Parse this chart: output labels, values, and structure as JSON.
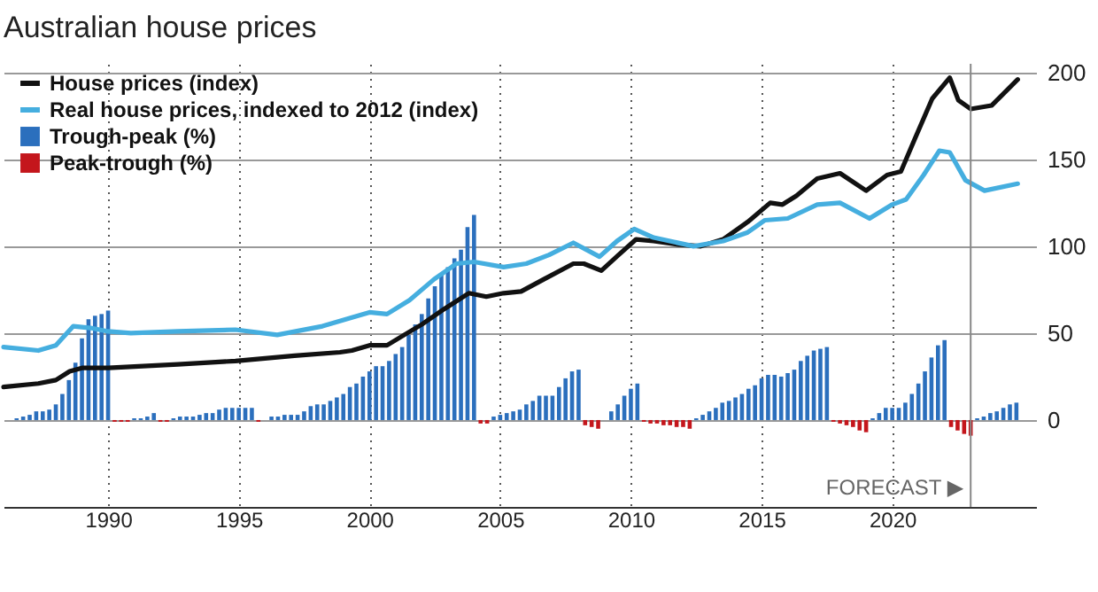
{
  "chart_data": {
    "type": "line",
    "title": "Australian house prices",
    "xlim": [
      1986,
      2025.5
    ],
    "xticks": [
      1990,
      1995,
      2000,
      2005,
      2010,
      2015,
      2020
    ],
    "ylim": [
      -50,
      205
    ],
    "yticks": [
      0,
      50,
      100,
      150,
      200
    ],
    "grid": true,
    "legend": "top left",
    "series": [
      {
        "name": "House prices (index)",
        "color": "#111111",
        "x": [
          1986,
          1987.33,
          1988,
          1988.53,
          1989,
          1990,
          1992.67,
          1994.87,
          1997.13,
          1998.87,
          1999.33,
          2000,
          2000.67,
          2001.33,
          2002,
          2002.87,
          2003.8,
          2004.47,
          2005.13,
          2005.8,
          2006.67,
          2007.8,
          2008.2,
          2008.87,
          2009.53,
          2010.2,
          2010.87,
          2011.8,
          2012.67,
          2013.53,
          2014.47,
          2015.33,
          2015.8,
          2016.33,
          2017.13,
          2018,
          2019,
          2019.8,
          2020.33,
          2020.87,
          2021.53,
          2022.2,
          2022.53,
          2023,
          2023.8,
          2024.8
        ],
        "values": [
          19,
          21,
          23,
          28,
          30,
          30,
          32,
          34,
          37,
          39,
          40,
          43,
          43,
          49,
          55,
          64,
          73,
          71,
          73,
          74,
          81,
          90,
          90,
          86,
          95,
          104,
          103,
          101,
          100,
          104,
          114,
          125,
          124,
          129,
          139,
          142,
          132,
          141,
          143,
          162,
          185,
          197,
          184,
          179,
          181,
          196
        ]
      },
      {
        "name": "Real house prices, indexed to 2012 (index)",
        "color": "#45aedf",
        "x": [
          1986,
          1987.33,
          1988,
          1988.67,
          1989.33,
          1990,
          1990.87,
          1992.67,
          1994.87,
          1996.47,
          1998.2,
          1999.33,
          2000,
          2000.67,
          2001.53,
          2002.47,
          2003.33,
          2004,
          2005.13,
          2006,
          2006.87,
          2007.8,
          2008.8,
          2009.47,
          2010.13,
          2010.87,
          2012.4,
          2013.53,
          2014.47,
          2015.13,
          2016,
          2017.13,
          2018,
          2019.13,
          2020,
          2020.53,
          2021.2,
          2021.8,
          2022.2,
          2022.8,
          2023.53,
          2024.8
        ],
        "values": [
          42,
          40,
          43,
          54,
          53,
          51,
          50,
          51,
          52,
          49,
          54,
          59,
          62,
          61,
          69,
          81,
          90,
          91,
          88,
          90,
          95,
          102,
          94,
          103,
          110,
          105,
          100,
          103,
          108,
          115,
          116,
          124,
          125,
          116,
          124,
          127,
          141,
          155,
          154,
          138,
          132,
          136
        ]
      },
      {
        "name": "Trough-peak (%)",
        "type": "bar",
        "color": "#2b6fbd",
        "x": [
          1986.5,
          1986.75,
          1987,
          1987.25,
          1987.5,
          1987.75,
          1988,
          1988.25,
          1988.5,
          1988.75,
          1989,
          1989.25,
          1989.5,
          1989.75,
          1990,
          1991,
          1991.25,
          1991.5,
          1991.75,
          1992.5,
          1992.75,
          1993,
          1993.25,
          1993.5,
          1993.75,
          1994,
          1994.25,
          1994.5,
          1994.75,
          1995,
          1995.25,
          1995.5,
          1996.25,
          1996.5,
          1996.75,
          1997,
          1997.25,
          1997.5,
          1997.75,
          1998,
          1998.25,
          1998.5,
          1998.75,
          1999,
          1999.25,
          1999.5,
          1999.75,
          2000,
          2000.25,
          2000.5,
          2000.75,
          2001,
          2001.25,
          2001.5,
          2001.75,
          2002,
          2002.25,
          2002.5,
          2002.75,
          2003,
          2003.25,
          2003.5,
          2003.75,
          2004,
          2004.75,
          2005,
          2005.25,
          2005.5,
          2005.75,
          2006,
          2006.25,
          2006.5,
          2006.75,
          2007,
          2007.25,
          2007.5,
          2007.75,
          2008,
          2009.25,
          2009.5,
          2009.75,
          2010,
          2010.25,
          2012.5,
          2012.75,
          2013,
          2013.25,
          2013.5,
          2013.75,
          2014,
          2014.25,
          2014.5,
          2014.75,
          2015,
          2015.25,
          2015.5,
          2015.75,
          2016,
          2016.25,
          2016.5,
          2016.75,
          2017,
          2017.25,
          2017.5,
          2019.25,
          2019.5,
          2019.75,
          2020,
          2020.25,
          2020.5,
          2020.75,
          2021,
          2021.25,
          2021.5,
          2021.75,
          2022,
          2023.25,
          2023.5,
          2023.75,
          2024,
          2024.25,
          2024.5,
          2024.75
        ],
        "values": [
          1,
          2,
          3,
          5,
          5,
          6,
          9,
          15,
          23,
          33,
          47,
          58,
          60,
          61,
          63,
          1,
          1,
          2,
          4,
          1,
          2,
          2,
          2,
          3,
          4,
          4,
          6,
          7,
          7,
          7,
          7,
          7,
          2,
          2,
          3,
          3,
          3,
          5,
          8,
          9,
          9,
          11,
          13,
          15,
          19,
          21,
          25,
          28,
          31,
          31,
          34,
          38,
          42,
          49,
          55,
          61,
          70,
          77,
          84,
          88,
          93,
          98,
          111,
          118,
          2,
          3,
          4,
          5,
          6,
          9,
          11,
          14,
          14,
          14,
          19,
          24,
          28,
          29,
          5,
          9,
          14,
          18,
          21,
          1,
          3,
          5,
          7,
          10,
          11,
          13,
          15,
          18,
          20,
          24,
          26,
          26,
          25,
          27,
          29,
          34,
          37,
          40,
          41,
          42,
          1,
          4,
          7,
          7,
          7,
          10,
          15,
          21,
          28,
          36,
          43,
          46,
          1,
          2,
          4,
          5,
          7,
          9,
          10
        ]
      },
      {
        "name": "Peak-trough (%)",
        "type": "bar",
        "color": "#c4161c",
        "x": [
          1990.25,
          1990.5,
          1990.75,
          1992,
          1992.25,
          1995.75,
          2004.25,
          2004.5,
          2008.25,
          2008.5,
          2008.75,
          2010.5,
          2010.75,
          2011,
          2011.25,
          2011.5,
          2011.75,
          2012,
          2012.25,
          2017.75,
          2018,
          2018.25,
          2018.5,
          2018.75,
          2019,
          2022.25,
          2022.5,
          2022.75,
          2023
        ],
        "values": [
          -1,
          -1,
          -1,
          -1,
          -1,
          -1,
          -2,
          -2,
          -3,
          -4,
          -5,
          -1,
          -2,
          -2,
          -3,
          -3,
          -4,
          -4,
          -5,
          -1,
          -2,
          -3,
          -4,
          -6,
          -7,
          -4,
          -6,
          -8,
          -9
        ]
      }
    ],
    "ref_lines": [
      {
        "axis": "x",
        "value": 2023,
        "label": "FORECAST ▶",
        "color": "#888888"
      }
    ]
  }
}
